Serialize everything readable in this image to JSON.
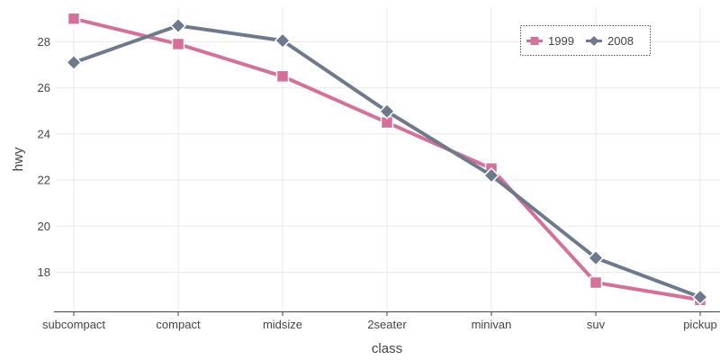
{
  "chart_data": {
    "type": "line",
    "xlabel": "class",
    "ylabel": "hwy",
    "categories": [
      "subcompact",
      "compact",
      "midsize",
      "2seater",
      "minivan",
      "suv",
      "pickup"
    ],
    "ylim": [
      16.3,
      29.5
    ],
    "yticks": [
      18,
      20,
      22,
      24,
      26,
      28
    ],
    "grid": true,
    "legend_position": "top-right",
    "series": [
      {
        "name": "1999",
        "marker": "square",
        "color": "#d4719a",
        "values": [
          29.0,
          27.9,
          26.5,
          24.5,
          22.5,
          17.55,
          16.8
        ]
      },
      {
        "name": "2008",
        "marker": "diamond",
        "color": "#6e7a8c",
        "values": [
          27.1,
          28.7,
          28.05,
          24.98,
          22.2,
          18.62,
          16.92
        ]
      }
    ]
  }
}
